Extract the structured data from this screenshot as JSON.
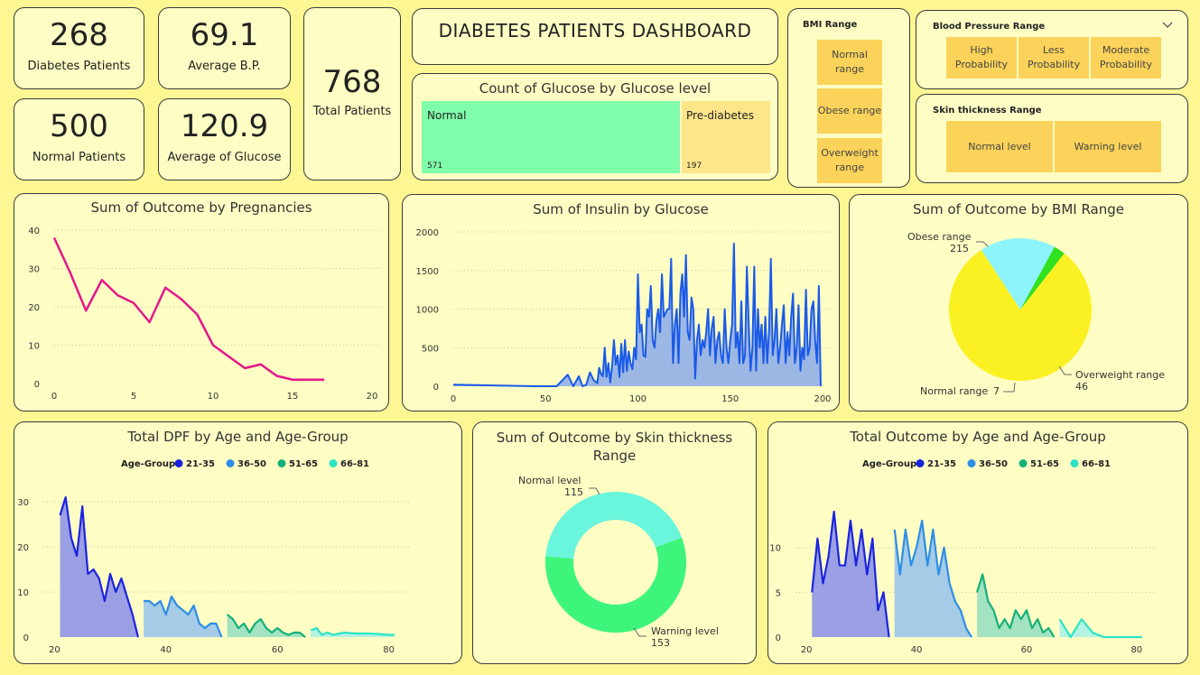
{
  "kpis": {
    "diabetes": {
      "value": "268",
      "label": "Diabetes Patients"
    },
    "avg_bp": {
      "value": "69.1",
      "label": "Average B.P."
    },
    "total": {
      "value": "768",
      "label": "Total Patients"
    },
    "normal": {
      "value": "500",
      "label": "Normal Patients"
    },
    "avg_glucose": {
      "value": "120.9",
      "label": "Average of Glucose"
    }
  },
  "dashboard_title": "DIABETES PATIENTS DASHBOARD",
  "glucose_level": {
    "title": "Count of Glucose by Glucose level",
    "tiles": [
      {
        "label": "Normal",
        "count": "571",
        "value": 571,
        "color": "#80fdab"
      },
      {
        "label": "Pre-diabetes",
        "count": "197",
        "value": 197,
        "color": "#fde68a"
      }
    ]
  },
  "bmi_slicer": {
    "title": "BMI Range",
    "items": [
      "Normal range",
      "Obese range",
      "Overweight range"
    ]
  },
  "bp_slicer": {
    "title": "Blood Pressure Range",
    "items": [
      "High Probability",
      "Less Probability",
      "Moderate Probability"
    ],
    "icon": "chevron-down-icon"
  },
  "skin_slicer": {
    "title": "Skin thickness Range",
    "items": [
      "Normal level",
      "Warning level"
    ]
  },
  "chart_data": [
    {
      "id": "pregnancies",
      "type": "line",
      "title": "Sum of Outcome by Pregnancies",
      "x": [
        0,
        1,
        2,
        3,
        4,
        5,
        6,
        7,
        8,
        9,
        10,
        11,
        12,
        13,
        14,
        15,
        17
      ],
      "y": [
        38,
        29,
        19,
        27,
        23,
        21,
        16,
        25,
        22,
        18,
        10,
        7,
        4,
        5,
        2,
        1,
        1
      ],
      "xlim": [
        0,
        20
      ],
      "ylim": [
        0,
        40
      ],
      "xticks": [
        0,
        5,
        10,
        15,
        20
      ],
      "yticks": [
        0,
        10,
        20,
        30,
        40
      ],
      "color": "#e6178b",
      "grid": true
    },
    {
      "id": "insulin",
      "type": "area",
      "title": "Sum of Insulin by Glucose",
      "x": [
        0,
        44,
        56,
        62,
        65,
        68,
        70,
        72,
        74,
        76,
        78,
        79,
        80,
        81,
        82,
        83,
        84,
        85,
        86,
        87,
        88,
        89,
        90,
        91,
        92,
        93,
        94,
        95,
        96,
        97,
        98,
        99,
        100,
        101,
        102,
        103,
        104,
        105,
        106,
        107,
        108,
        109,
        110,
        111,
        112,
        113,
        114,
        115,
        116,
        117,
        118,
        119,
        120,
        121,
        122,
        123,
        124,
        125,
        126,
        127,
        128,
        129,
        130,
        131,
        132,
        133,
        134,
        135,
        136,
        137,
        138,
        139,
        140,
        141,
        142,
        143,
        144,
        145,
        146,
        147,
        148,
        149,
        150,
        151,
        152,
        153,
        154,
        155,
        156,
        157,
        158,
        159,
        160,
        161,
        162,
        163,
        164,
        165,
        166,
        167,
        168,
        169,
        170,
        171,
        172,
        173,
        174,
        175,
        176,
        177,
        178,
        179,
        180,
        181,
        182,
        183,
        184,
        185,
        186,
        187,
        188,
        189,
        190,
        191,
        192,
        193,
        194,
        195,
        196,
        197,
        198,
        199
      ],
      "y": [
        20,
        0,
        0,
        150,
        0,
        130,
        0,
        20,
        180,
        80,
        40,
        240,
        160,
        130,
        500,
        120,
        300,
        50,
        250,
        600,
        280,
        400,
        120,
        550,
        180,
        600,
        200,
        450,
        300,
        220,
        500,
        350,
        1450,
        700,
        800,
        400,
        380,
        1000,
        900,
        1300,
        600,
        500,
        850,
        1000,
        700,
        1450,
        900,
        950,
        1000,
        1000,
        1650,
        300,
        800,
        1000,
        300,
        1200,
        1450,
        900,
        1700,
        700,
        600,
        1150,
        1000,
        100,
        600,
        800,
        400,
        600,
        500,
        700,
        1000,
        400,
        750,
        900,
        300,
        600,
        700,
        400,
        300,
        1000,
        500,
        300,
        600,
        800,
        1850,
        500,
        700,
        300,
        1100,
        300,
        400,
        1550,
        800,
        200,
        500,
        1550,
        200,
        1000,
        500,
        800,
        300,
        900,
        300,
        700,
        1650,
        400,
        600,
        1000,
        300,
        500,
        800,
        1050,
        300,
        700,
        400,
        900,
        1200,
        300,
        500,
        1050,
        200,
        500,
        350,
        1250,
        400,
        500,
        1000,
        1100,
        600,
        300,
        1300,
        0
      ],
      "xlim": [
        0,
        200
      ],
      "ylim": [
        0,
        2000
      ],
      "xticks": [
        0,
        50,
        100,
        150,
        200
      ],
      "yticks": [
        0,
        500,
        1000,
        1500,
        2000
      ],
      "color": "#1a5ae8",
      "fill": "#9db7e4",
      "grid": true
    },
    {
      "id": "bmi_pie",
      "type": "pie",
      "title": "Sum of Outcome by BMI Range",
      "slices": [
        {
          "label": "Obese range",
          "value": 215,
          "color": "#fbf122"
        },
        {
          "label": "Overweight range",
          "value": 46,
          "color": "#8df3fd"
        },
        {
          "label": "Normal range",
          "value": 7,
          "color": "#2fe11f"
        }
      ]
    },
    {
      "id": "dpf",
      "type": "area",
      "title": "Total DPF by Age and Age-Group",
      "legend_title": "Age-Group",
      "xlim": [
        18,
        82
      ],
      "ylim": [
        0,
        32
      ],
      "xticks": [
        20,
        40,
        60,
        80
      ],
      "yticks": [
        0,
        10,
        20,
        30
      ],
      "series": [
        {
          "name": "21-35",
          "color": "#1a24e0",
          "fill": "#9b9fe3",
          "x": [
            21,
            22,
            23,
            24,
            25,
            26,
            27,
            28,
            29,
            30,
            31,
            32,
            33,
            34,
            35
          ],
          "y": [
            27,
            31,
            22,
            18,
            29,
            14,
            15,
            13,
            8,
            14,
            10,
            13,
            9,
            5,
            0
          ]
        },
        {
          "name": "36-50",
          "color": "#2d8ee6",
          "fill": "#a5cbe7",
          "x": [
            36,
            37,
            38,
            39,
            40,
            41,
            42,
            43,
            44,
            45,
            46,
            47,
            48,
            49,
            50
          ],
          "y": [
            8,
            8,
            7,
            8,
            5,
            9,
            7,
            6,
            5,
            7,
            3,
            2,
            3,
            3,
            0
          ]
        },
        {
          "name": "51-65",
          "color": "#16b07a",
          "fill": "#a3e3c1",
          "x": [
            51,
            52,
            53,
            54,
            55,
            56,
            57,
            58,
            59,
            60,
            61,
            62,
            63,
            64,
            65
          ],
          "y": [
            5,
            4,
            2,
            3,
            1,
            3,
            4,
            2,
            1,
            2,
            1,
            0.5,
            1,
            1,
            0
          ]
        },
        {
          "name": "66-81",
          "color": "#2ce4c4",
          "fill": "#b4f2e2",
          "x": [
            66,
            67,
            68,
            69,
            70,
            72,
            74,
            76,
            78,
            80,
            81
          ],
          "y": [
            1.5,
            2,
            0.5,
            1,
            0.5,
            1,
            0.8,
            0.8,
            0.7,
            0.5,
            0.5
          ]
        }
      ]
    },
    {
      "id": "skin_donut",
      "type": "pie",
      "title": "Sum of Outcome by Skin thickness Range",
      "slices": [
        {
          "label": "Warning level",
          "value": 153,
          "color": "#3ef57c"
        },
        {
          "label": "Normal level",
          "value": 115,
          "color": "#6af5dd"
        }
      ]
    },
    {
      "id": "outcome_age",
      "type": "area",
      "title": "Total Outcome by Age and Age-Group",
      "legend_title": "Age-Group",
      "xlim": [
        18,
        82
      ],
      "ylim": [
        0,
        14
      ],
      "xticks": [
        20,
        40,
        60,
        80
      ],
      "yticks": [
        0,
        5,
        10
      ],
      "series": [
        {
          "name": "21-35",
          "color": "#1a24e0",
          "fill": "#9b9fe3",
          "x": [
            21,
            22,
            23,
            24,
            25,
            26,
            27,
            28,
            29,
            30,
            31,
            32,
            33,
            34,
            35
          ],
          "y": [
            5,
            11,
            6,
            9,
            14,
            8,
            8,
            13,
            8,
            12,
            7,
            11,
            3,
            5,
            0
          ]
        },
        {
          "name": "36-50",
          "color": "#2d8ee6",
          "fill": "#a5cbe7",
          "x": [
            36,
            37,
            38,
            39,
            40,
            41,
            42,
            43,
            44,
            45,
            46,
            47,
            48,
            49,
            50
          ],
          "y": [
            12,
            7,
            12,
            8,
            10,
            13,
            8,
            12,
            7,
            10,
            6,
            4,
            3,
            1,
            0
          ]
        },
        {
          "name": "51-65",
          "color": "#16b07a",
          "fill": "#a3e3c1",
          "x": [
            51,
            52,
            53,
            54,
            55,
            56,
            57,
            58,
            59,
            60,
            61,
            62,
            63,
            64,
            65
          ],
          "y": [
            5,
            7,
            4,
            3,
            1,
            2,
            1,
            3,
            2,
            3,
            1,
            2,
            0.5,
            1,
            0
          ]
        },
        {
          "name": "66-81",
          "color": "#2ce4c4",
          "fill": "#b4f2e2",
          "x": [
            66,
            67,
            68,
            69,
            70,
            72,
            74,
            76,
            78,
            80,
            81
          ],
          "y": [
            2,
            1,
            0,
            1,
            2,
            0.5,
            0,
            0,
            0,
            0,
            0
          ]
        }
      ]
    }
  ]
}
